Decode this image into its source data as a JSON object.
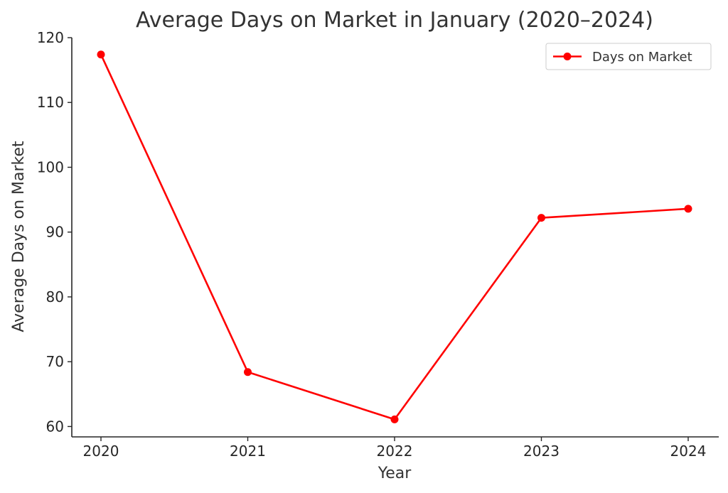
{
  "chart_data": {
    "type": "line",
    "title": "Average Days on Market in January (2020–2024)",
    "xlabel": "Year",
    "ylabel": "Average Days on Market",
    "categories": [
      "2020",
      "2021",
      "2022",
      "2023",
      "2024"
    ],
    "series": [
      {
        "name": "Days on Market",
        "values": [
          117.4,
          68.4,
          61.1,
          92.2,
          93.6
        ],
        "color": "#ff0000"
      }
    ],
    "ylim": [
      58.4,
      120
    ],
    "yticks": [
      60,
      70,
      80,
      90,
      100,
      110,
      120
    ],
    "grid": false,
    "legend": "top-right"
  }
}
